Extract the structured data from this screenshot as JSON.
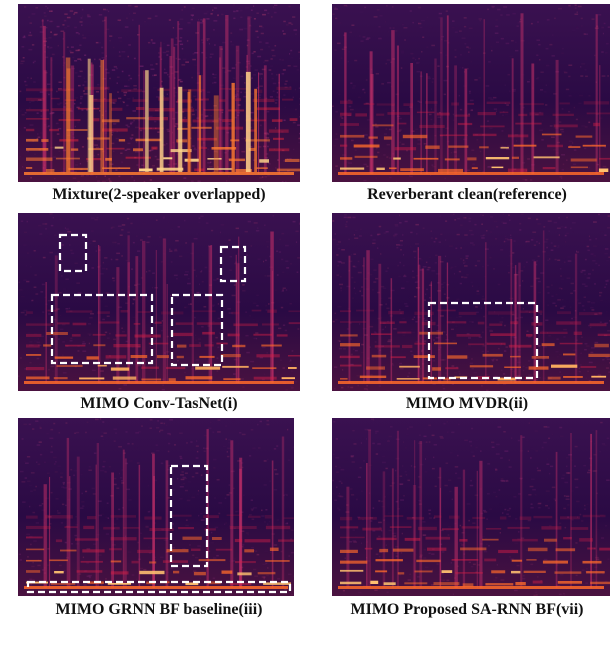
{
  "figure": {
    "panels": [
      {
        "caption": "Mixture(2-speaker overlapped)",
        "bright_colors": [
          "#ff7a30",
          "#ffd48a",
          "#e8243a"
        ],
        "style": "dense",
        "highlight_boxes": []
      },
      {
        "caption": "Reverberant clean(reference)",
        "bright_colors": [
          "#ff6a2a",
          "#ffc070",
          "#d81e46"
        ],
        "style": "clean",
        "highlight_boxes": []
      },
      {
        "caption": "MIMO Conv-TasNet(i)",
        "bright_colors": [
          "#ff6a2a",
          "#ffb060",
          "#d81e46"
        ],
        "style": "clean",
        "highlight_boxes": [
          {
            "name": "upper-left-artifact"
          },
          {
            "name": "upper-right-artifact"
          },
          {
            "name": "lower-left-artifact"
          },
          {
            "name": "lower-middle-artifact"
          }
        ]
      },
      {
        "caption": "MIMO MVDR(ii)",
        "bright_colors": [
          "#ff6a2a",
          "#ffb060",
          "#d81e46"
        ],
        "style": "noisy",
        "highlight_boxes": [
          {
            "name": "residual-noise-region"
          }
        ]
      },
      {
        "caption": "MIMO GRNN BF baseline(iii)",
        "bright_colors": [
          "#ff6a2a",
          "#ffc070",
          "#d81e46"
        ],
        "style": "clean",
        "highlight_boxes": [
          {
            "name": "missing-harmonics-region"
          },
          {
            "name": "low-frequency-band"
          }
        ]
      },
      {
        "caption": "MIMO Proposed SA-RNN BF(vii)",
        "bright_colors": [
          "#ff6a2a",
          "#ffc070",
          "#d81e46"
        ],
        "style": "clean",
        "highlight_boxes": []
      }
    ]
  }
}
